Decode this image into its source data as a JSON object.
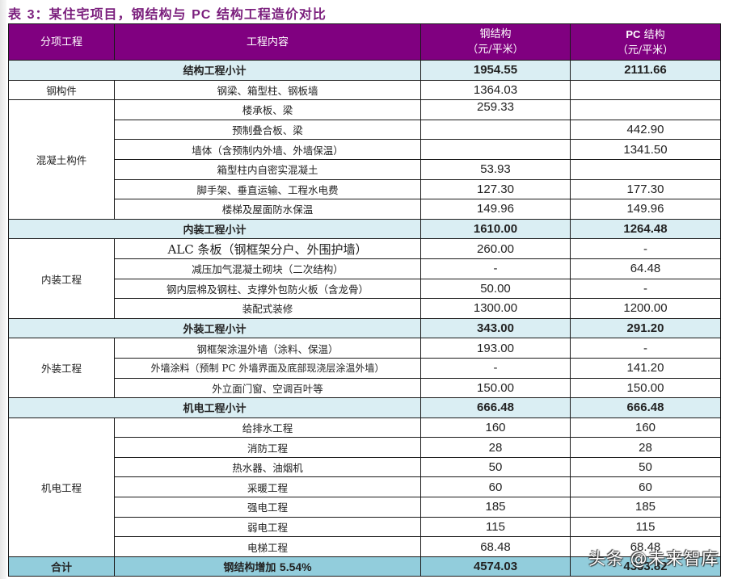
{
  "title": {
    "prefix": "表 ",
    "num": "3",
    "sep": "：",
    "text_a": "某住宅项目，钢结构与 ",
    "latin": "PC",
    "text_b": " 结构工程造价对比"
  },
  "header": {
    "col1": "分项工程",
    "col2": "工程内容",
    "col3_line1": "钢结构",
    "col3_line2": "（元/平米）",
    "col4_latin": "PC",
    "col4_line1": " 结构",
    "col4_line2": "（元/平米）"
  },
  "sections": [
    {
      "subtotal": {
        "label": "结构工程小计",
        "steel": "1954.55",
        "pc": "2111.66"
      },
      "groups": [
        {
          "category": "钢构件",
          "rows": [
            {
              "content": "钢梁、箱型柱、钢板墙",
              "steel": "1364.03",
              "pc": ""
            }
          ]
        },
        {
          "category": "混凝土构件",
          "rows": [
            {
              "content": "楼承板、梁",
              "steel": "259.33",
              "pc": ""
            },
            {
              "content": "预制叠合板、梁",
              "steel": "",
              "pc": "442.90"
            },
            {
              "content": "墙体（含预制内外墙、外墙保温）",
              "steel": "",
              "pc": "1341.50"
            },
            {
              "content": "箱型柱内自密实混凝土",
              "steel": "53.93",
              "pc": ""
            },
            {
              "content": "脚手架、垂直运输、工程水电费",
              "steel": "127.30",
              "pc": "177.30"
            },
            {
              "content": "楼梯及屋面防水保温",
              "steel": "149.96",
              "pc": "149.96"
            }
          ]
        }
      ]
    },
    {
      "subtotal": {
        "label": "内装工程小计",
        "steel": "1610.00",
        "pc": "1264.48"
      },
      "groups": [
        {
          "category": "内装工程",
          "rows": [
            {
              "content": "ALC 条板（钢框架分户、外围护墙）",
              "steel": "260.00",
              "pc": "-"
            },
            {
              "content": "减压加气混凝土砌块（二次结构）",
              "steel": "-",
              "pc": "64.48"
            },
            {
              "content": "钢内层棉及钢柱、支撑外包防火板（含龙骨）",
              "steel": "50.00",
              "pc": "-"
            },
            {
              "content": "装配式装修",
              "steel": "1300.00",
              "pc": "1200.00"
            }
          ]
        }
      ]
    },
    {
      "subtotal": {
        "label": "外装工程小计",
        "steel": "343.00",
        "pc": "291.20"
      },
      "groups": [
        {
          "category": "外装工程",
          "rows": [
            {
              "content": "钢框架涂温外墙（涂料、保温）",
              "steel": "193.00",
              "pc": "-"
            },
            {
              "content": "外墙涂料（预制 PC 外墙界面及底部现浇层涂温外墙）",
              "steel": "-",
              "pc": "141.20"
            },
            {
              "content": "外立面门窗、空调百叶等",
              "steel": "150.00",
              "pc": "150.00"
            }
          ]
        }
      ]
    },
    {
      "subtotal": {
        "label": "机电工程小计",
        "steel": "666.48",
        "pc": "666.48"
      },
      "groups": [
        {
          "category": "机电工程",
          "rows": [
            {
              "content": "给排水工程",
              "steel": "160",
              "pc": "160"
            },
            {
              "content": "消防工程",
              "steel": "28",
              "pc": "28"
            },
            {
              "content": "热水器、油烟机",
              "steel": "50",
              "pc": "50"
            },
            {
              "content": "采暖工程",
              "steel": "60",
              "pc": "60"
            },
            {
              "content": "强电工程",
              "steel": "185",
              "pc": "185"
            },
            {
              "content": "弱电工程",
              "steel": "115",
              "pc": "115"
            },
            {
              "content": "电梯工程",
              "steel": "68.48",
              "pc": "68.48"
            }
          ]
        }
      ]
    }
  ],
  "total": {
    "label": "合计",
    "note_text": "钢结构增加 ",
    "note_pct": "5.54%",
    "steel": "4574.03",
    "pc": "4333.82"
  },
  "watermark": "头条 @未来智库",
  "colors": {
    "header_bg": "#800080",
    "subtotal_bg": "#daeef3",
    "total_bg": "#92cddc",
    "title_color": "#7b1f7d"
  }
}
